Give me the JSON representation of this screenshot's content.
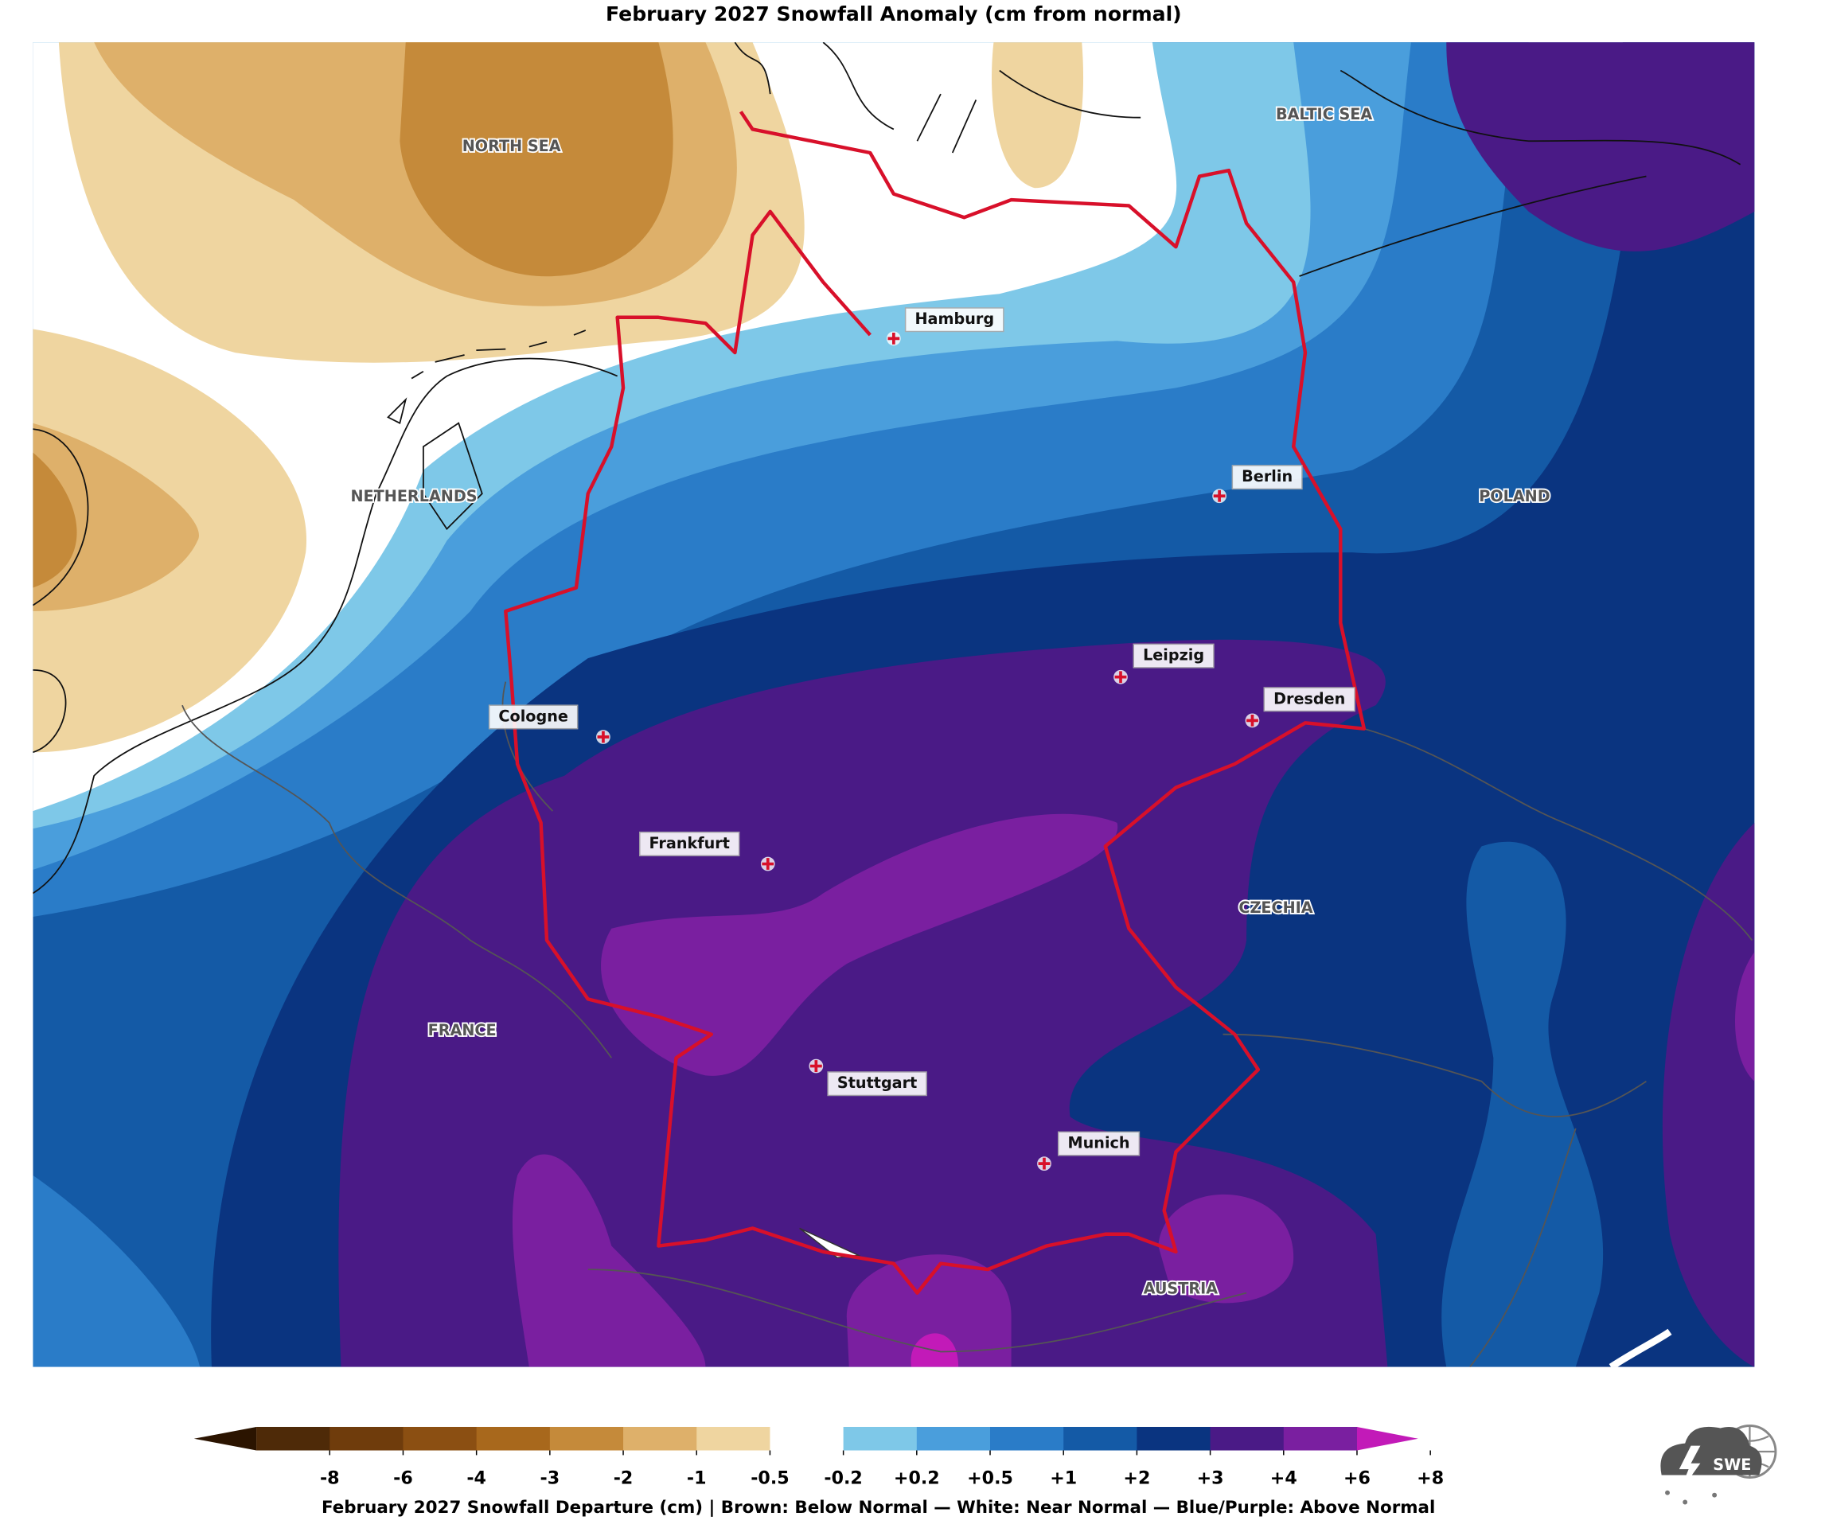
{
  "header": {
    "title": "February 2027 Snowfall Anomaly (cm from normal)"
  },
  "map": {
    "regions": [
      {
        "label": "NORTH SEA"
      },
      {
        "label": "BALTIC SEA"
      },
      {
        "label": "NETHERLANDS"
      },
      {
        "label": "POLAND"
      },
      {
        "label": "CZECHIA"
      },
      {
        "label": "FRANCE"
      },
      {
        "label": "AUSTRIA"
      }
    ],
    "cities": [
      {
        "name": "Hamburg"
      },
      {
        "name": "Berlin"
      },
      {
        "name": "Leipzig"
      },
      {
        "name": "Dresden"
      },
      {
        "name": "Cologne"
      },
      {
        "name": "Frankfurt"
      },
      {
        "name": "Stuttgart"
      },
      {
        "name": "Munich"
      }
    ]
  },
  "legend": {
    "ticks": [
      -8,
      -6,
      -4,
      -3,
      -2,
      -1,
      -0.5,
      -0.2,
      {
        "value": 0.2,
        "label": "+0.2"
      },
      {
        "value": 0.5,
        "label": "+0.5"
      },
      {
        "value": 1,
        "label": "+1"
      },
      {
        "value": 2,
        "label": "+2"
      },
      {
        "value": 3,
        "label": "+3"
      },
      {
        "value": 4,
        "label": "+4"
      },
      {
        "value": 6,
        "label": "+6"
      },
      {
        "value": 8,
        "label": "+8"
      }
    ],
    "colors": [
      "#2b1400",
      "#4e2a08",
      "#6f3c0c",
      "#8b4f12",
      "#a8681c",
      "#c58a3a",
      "#deb06a",
      "#efd5a0",
      "#ffffff",
      "#7ec8e8",
      "#4a9edc",
      "#2a7cc8",
      "#145aa6",
      "#0a3480",
      "#4a1a86",
      "#7a1fa0",
      "#c21ab8"
    ],
    "caption": "February 2027 Snowfall Departure (cm)  |  Brown: Below Normal  —  White: Near Normal  —  Blue/Purple: Above Normal"
  },
  "logo": {
    "label": "SWE"
  }
}
